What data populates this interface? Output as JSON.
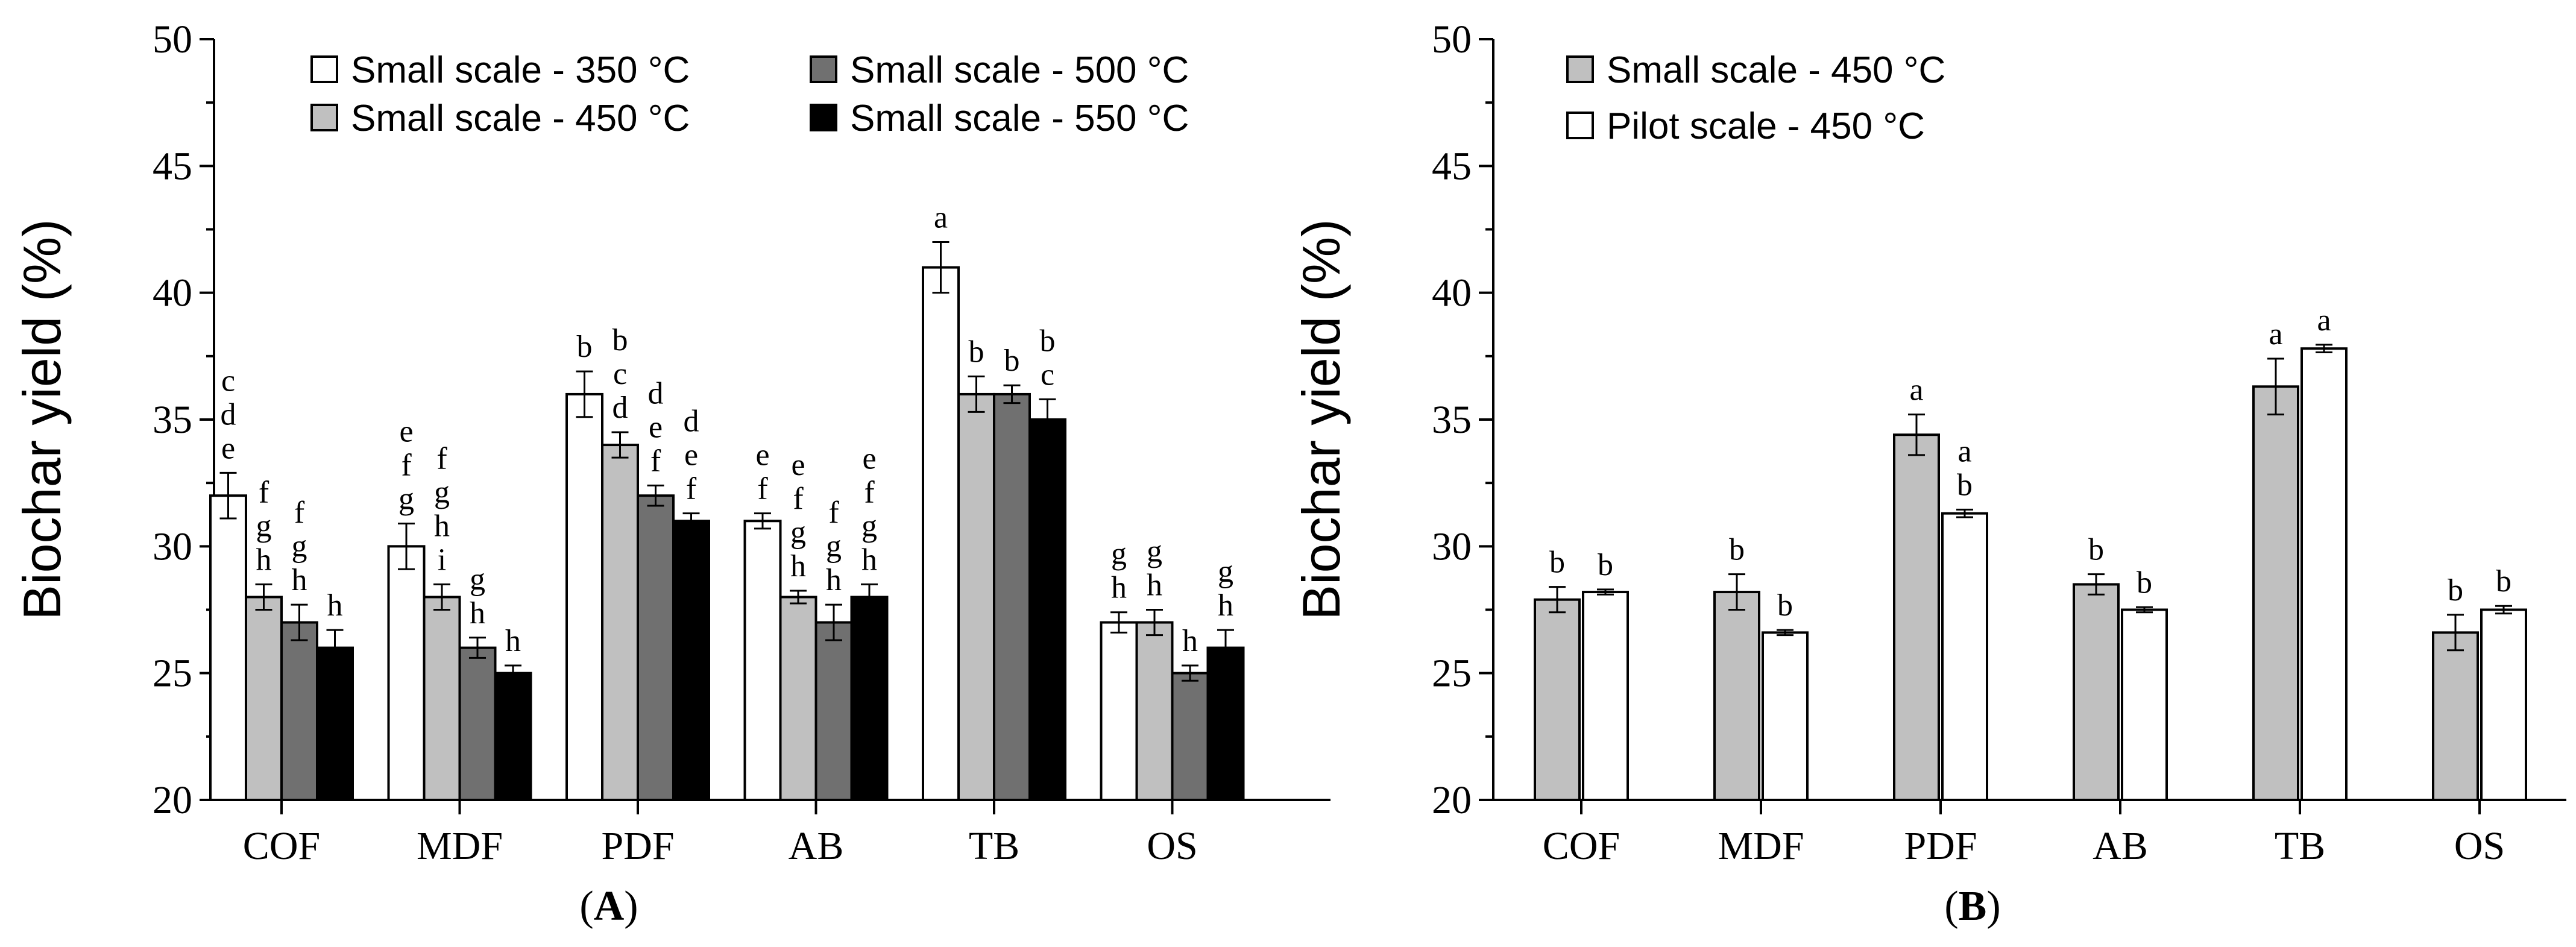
{
  "colors": {
    "Small scale - 350 °C": "#ffffff",
    "Small scale - 450 °C": "#c0c0c0",
    "Small scale - 500 °C": "#707070",
    "Small scale - 550 °C": "#000000",
    "Pilot scale - 450 °C": "#ffffff"
  },
  "chart_data": [
    {
      "panel": "A",
      "panel_label": "A",
      "type": "bar",
      "ylabel": "Biochar yield (%)",
      "ylim": [
        20,
        50
      ],
      "yticks": [
        20,
        25,
        30,
        35,
        40,
        45,
        50
      ],
      "categories": [
        "COF",
        "MDF",
        "PDF",
        "AB",
        "TB",
        "OS"
      ],
      "legend": {
        "placement": "top",
        "columns": [
          [
            "Small scale - 350 °C",
            "Small scale - 450 °C"
          ],
          [
            "Small scale - 500 °C",
            "Small scale - 550 °C"
          ]
        ]
      },
      "series": [
        {
          "name": "Small scale - 350 °C",
          "values": [
            32,
            30,
            36,
            31,
            41,
            27
          ],
          "errors": [
            0.9,
            0.9,
            0.9,
            0.3,
            1.0,
            0.4
          ],
          "letters": [
            [
              "c",
              "d",
              "e"
            ],
            [
              "e",
              "f",
              "g"
            ],
            [
              "b"
            ],
            [
              "e",
              "f"
            ],
            [
              "a"
            ],
            [
              "g",
              "h"
            ]
          ]
        },
        {
          "name": "Small scale - 450 °C",
          "values": [
            28,
            28,
            34,
            28,
            36,
            27
          ],
          "errors": [
            0.5,
            0.5,
            0.5,
            0.25,
            0.7,
            0.5
          ],
          "letters": [
            [
              "f",
              "g",
              "h"
            ],
            [
              "f",
              "g",
              "h",
              "i"
            ],
            [
              "b",
              "c",
              "d"
            ],
            [
              "e",
              "f",
              "g",
              "h"
            ],
            [
              "b"
            ],
            [
              "g",
              "h"
            ]
          ]
        },
        {
          "name": "Small scale - 500 °C",
          "values": [
            27,
            26,
            32,
            27,
            36,
            25
          ],
          "errors": [
            0.7,
            0.4,
            0.4,
            0.7,
            0.35,
            0.3
          ],
          "letters": [
            [
              "f",
              "g",
              "h"
            ],
            [
              "g",
              "h"
            ],
            [
              "d",
              "e",
              "f"
            ],
            [
              "f",
              "g",
              "h"
            ],
            [
              "b"
            ],
            [
              "h"
            ]
          ]
        },
        {
          "name": "Small scale - 550 °C",
          "values": [
            26,
            25,
            31,
            28,
            35,
            26
          ],
          "errors": [
            0.7,
            0.3,
            0.3,
            0.5,
            0.8,
            0.7
          ],
          "letters": [
            [
              "h"
            ],
            [
              "h"
            ],
            [
              "d",
              "e",
              "f"
            ],
            [
              "e",
              "f",
              "g",
              "h"
            ],
            [
              "b",
              "c"
            ],
            [
              "g",
              "h"
            ]
          ]
        }
      ]
    },
    {
      "panel": "B",
      "panel_label": "B",
      "type": "bar",
      "ylabel": "Biochar yield (%)",
      "ylim": [
        20,
        50
      ],
      "yticks": [
        20,
        25,
        30,
        35,
        40,
        45,
        50
      ],
      "categories": [
        "COF",
        "MDF",
        "PDF",
        "AB",
        "TB",
        "OS"
      ],
      "legend": {
        "placement": "top-left",
        "columns": [
          [
            "Small scale - 450 °C",
            "Pilot scale - 450 °C"
          ]
        ]
      },
      "series": [
        {
          "name": "Small scale - 450 °C",
          "values": [
            27.9,
            28.2,
            34.4,
            28.5,
            36.3,
            26.6
          ],
          "errors": [
            0.5,
            0.7,
            0.8,
            0.4,
            1.1,
            0.7
          ],
          "letters": [
            [
              "b"
            ],
            [
              "b"
            ],
            [
              "a"
            ],
            [
              "b"
            ],
            [
              "a"
            ],
            [
              "b"
            ]
          ]
        },
        {
          "name": "Pilot scale - 450 °C",
          "values": [
            28.2,
            26.6,
            31.3,
            27.5,
            37.8,
            27.5
          ],
          "errors": [
            0.1,
            0.1,
            0.15,
            0.1,
            0.15,
            0.15
          ],
          "letters": [
            [
              "b"
            ],
            [
              "b"
            ],
            [
              "a",
              "b"
            ],
            [
              "b"
            ],
            [
              "a"
            ],
            [
              "b"
            ]
          ]
        }
      ]
    }
  ]
}
